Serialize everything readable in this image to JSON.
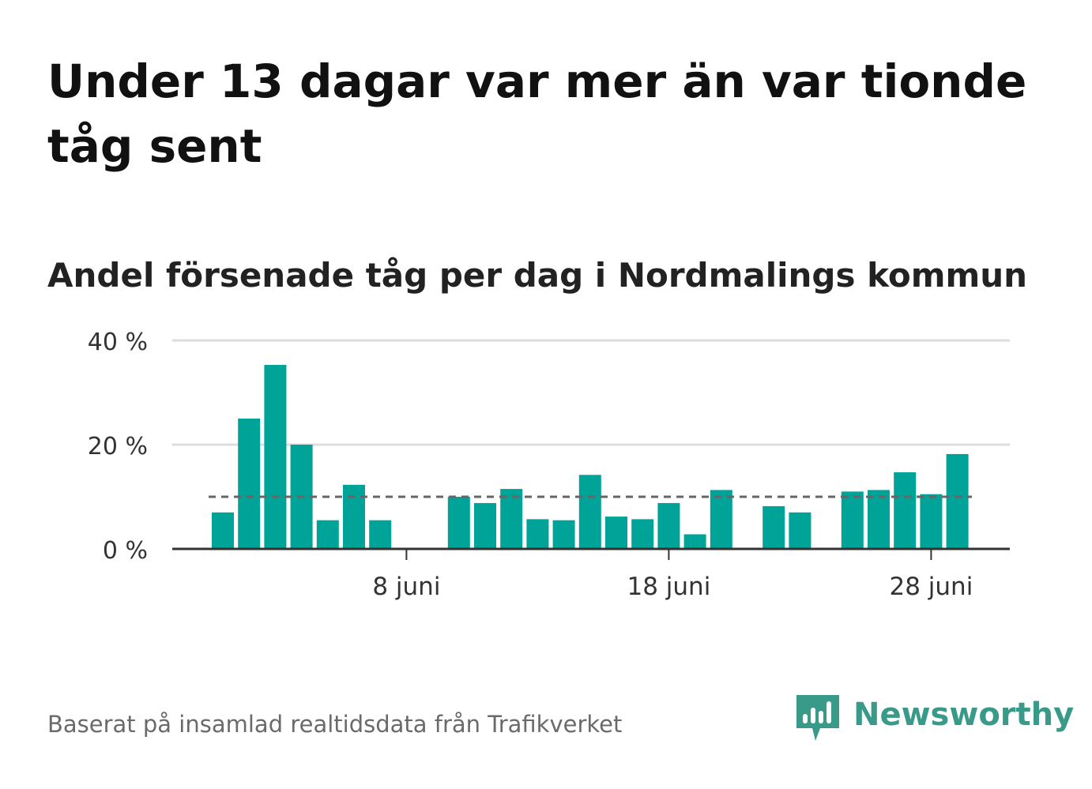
{
  "title": "Under 13 dagar var mer än var tionde tåg sent",
  "subtitle": "Andel försenade tåg per dag i Nordmalings kommun",
  "source": "Baserat på insamlad realtidsdata från Trafikverket",
  "brand": {
    "name": "Newsworthy",
    "icon": "newsworthy-logo-icon",
    "color": "#3a9a8a"
  },
  "colors": {
    "bar": "#00a398",
    "reference_line": "#666666",
    "grid": "#dddddd",
    "axis": "#333333"
  },
  "chart_data": {
    "type": "bar",
    "x_start_day": 1,
    "month": "juni",
    "values": [
      7,
      25,
      35.3,
      20,
      5.5,
      12.3,
      5.5,
      null,
      null,
      10,
      8.8,
      11.5,
      5.7,
      5.5,
      14.2,
      6.2,
      5.7,
      8.8,
      2.8,
      11.3,
      null,
      8.2,
      7,
      null,
      11,
      11.3,
      14.7,
      10.5,
      18.2
    ],
    "reference_line": 10,
    "ylim": [
      0,
      40
    ],
    "yticks": [
      {
        "value": 0,
        "label": "0 %"
      },
      {
        "value": 20,
        "label": "20 %"
      },
      {
        "value": 40,
        "label": "40 %"
      }
    ],
    "xticks": [
      {
        "day": 8,
        "label": "8 juni"
      },
      {
        "day": 18,
        "label": "18 juni"
      },
      {
        "day": 28,
        "label": "28 juni"
      }
    ],
    "grid": true,
    "legend": "none"
  }
}
